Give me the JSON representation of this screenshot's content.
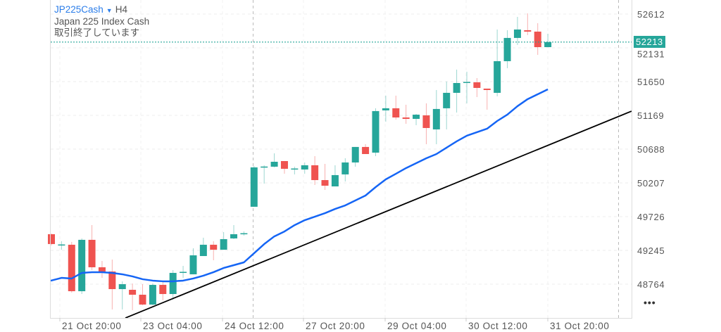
{
  "header": {
    "symbol": "JP225Cash",
    "timeframe": "H4",
    "name": "Japan 225 Index Cash",
    "status": "取引終了しています"
  },
  "price_axis": {
    "ticks": [
      "52612",
      "52131",
      "51650",
      "51169",
      "50688",
      "50207",
      "49726",
      "49245",
      "48764"
    ],
    "current_price": "52213",
    "more_label": "•••"
  },
  "time_axis": {
    "labels": [
      "21 Oct 20:00",
      "23 Oct 04:00",
      "24 Oct 12:00",
      "27 Oct 20:00",
      "29 Oct 04:00",
      "30 Oct 12:00",
      "31 Oct 20:00"
    ]
  },
  "colors": {
    "up": "#26a69a",
    "down": "#ef5350",
    "ma": "#1565f5",
    "trendline": "#000000",
    "current_price": "#26a69a"
  },
  "chart_data": {
    "type": "candlestick",
    "ylim": [
      48300,
      52800
    ],
    "candles": [
      [
        49476,
        49486,
        49316,
        49336
      ],
      [
        49326,
        49376,
        49255,
        49330
      ],
      [
        49326,
        49366,
        48644,
        48664
      ],
      [
        48664,
        49416,
        48624,
        49396
      ],
      [
        49396,
        49606,
        48965,
        49005
      ],
      [
        49005,
        49095,
        48855,
        48945
      ],
      [
        48945,
        49115,
        48404,
        48694
      ],
      [
        48694,
        48804,
        48404,
        48764
      ],
      [
        48684,
        48774,
        48394,
        48614
      ],
      [
        48614,
        48764,
        48464,
        48474
      ],
      [
        48474,
        48774,
        48464,
        48754
      ],
      [
        48754,
        48794,
        48534,
        48624
      ],
      [
        48624,
        48965,
        48544,
        48925
      ],
      [
        48935,
        49025,
        48855,
        48940
      ],
      [
        48905,
        49276,
        48905,
        49175
      ],
      [
        49165,
        49426,
        49165,
        49326
      ],
      [
        49326,
        49376,
        49105,
        49255
      ],
      [
        49255,
        49506,
        49255,
        49406
      ],
      [
        49416,
        49606,
        49406,
        49476
      ],
      [
        49486,
        49516,
        49456,
        49490
      ],
      [
        49867,
        50448,
        49867,
        50428
      ],
      [
        50438,
        50458,
        50197,
        50440
      ],
      [
        50438,
        50628,
        50428,
        50508
      ],
      [
        50518,
        50518,
        50338,
        50408
      ],
      [
        50408,
        50438,
        50328,
        50412
      ],
      [
        50398,
        50498,
        50338,
        50458
      ],
      [
        50458,
        50588,
        50177,
        50247
      ],
      [
        50247,
        50478,
        50107,
        50167
      ],
      [
        50157,
        50458,
        50157,
        50318
      ],
      [
        50328,
        50558,
        50227,
        50498
      ],
      [
        50498,
        50719,
        50438,
        50719
      ],
      [
        50719,
        50759,
        50618,
        50618
      ],
      [
        50638,
        51270,
        50588,
        51230
      ],
      [
        51240,
        51450,
        51079,
        51270
      ],
      [
        51270,
        51450,
        51109,
        51139
      ],
      [
        51139,
        51320,
        51049,
        51119
      ],
      [
        51119,
        51190,
        51029,
        51179
      ],
      [
        51169,
        51340,
        50758,
        50989
      ],
      [
        50969,
        51530,
        50758,
        51260
      ],
      [
        51270,
        51651,
        50969,
        51490
      ],
      [
        51490,
        51821,
        51209,
        51630
      ],
      [
        51640,
        51791,
        51340,
        51645
      ],
      [
        51640,
        51700,
        51430,
        51560
      ],
      [
        51550,
        51550,
        51250,
        51530
      ],
      [
        51490,
        52392,
        51440,
        51941
      ],
      [
        51941,
        52382,
        51841,
        52272
      ],
      [
        52272,
        52572,
        52171,
        52392
      ],
      [
        52382,
        52622,
        52312,
        52362
      ],
      [
        52362,
        52482,
        52031,
        52141
      ],
      [
        52141,
        52332,
        52141,
        52213
      ]
    ],
    "moving_average": [
      48814,
      48854,
      48845,
      48925,
      48935,
      48935,
      48925,
      48905,
      48875,
      48835,
      48815,
      48805,
      48805,
      48815,
      48845,
      48885,
      48935,
      48995,
      49035,
      49075,
      49205,
      49335,
      49445,
      49515,
      49605,
      49676,
      49726,
      49776,
      49836,
      49886,
      49957,
      50027,
      50147,
      50257,
      50337,
      50418,
      50488,
      50558,
      50618,
      50709,
      50799,
      50879,
      50929,
      50979,
      51089,
      51180,
      51300,
      51400,
      51470,
      51540
    ],
    "trendline": [
      [
        7.3,
        48283
      ],
      [
        57.26,
        51229
      ]
    ]
  }
}
